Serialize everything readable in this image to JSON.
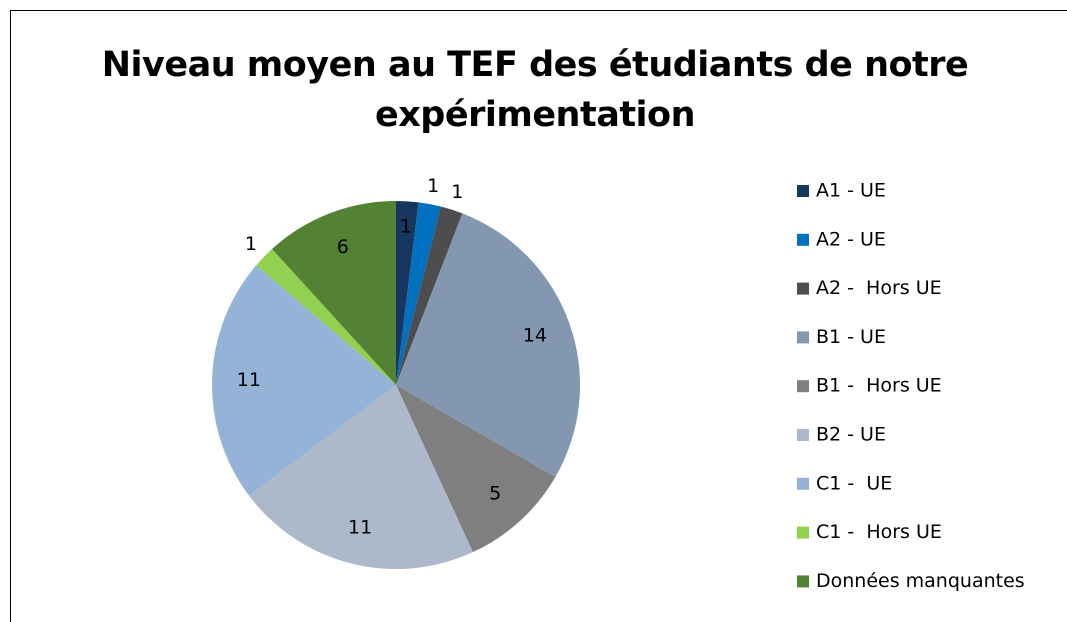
{
  "chart_data": {
    "type": "pie",
    "title": "Niveau moyen au TEF des étudiants de notre expérimentation",
    "categories": [
      "A1 - UE",
      "A2 - UE",
      "A2 -  Hors UE",
      "B1 - UE",
      "B1 -  Hors UE",
      "B2 - UE",
      "C1 -  UE",
      "C1 -  Hors UE",
      "Données manquantes"
    ],
    "values": [
      1,
      1,
      1,
      14,
      5,
      11,
      11,
      1,
      6
    ],
    "colors": [
      "#17375e",
      "#0070c0",
      "#4d4d4d",
      "#8497b0",
      "#7f7f7f",
      "#adb9ca",
      "#95b3d7",
      "#92d050",
      "#548235"
    ],
    "legend": "right"
  }
}
